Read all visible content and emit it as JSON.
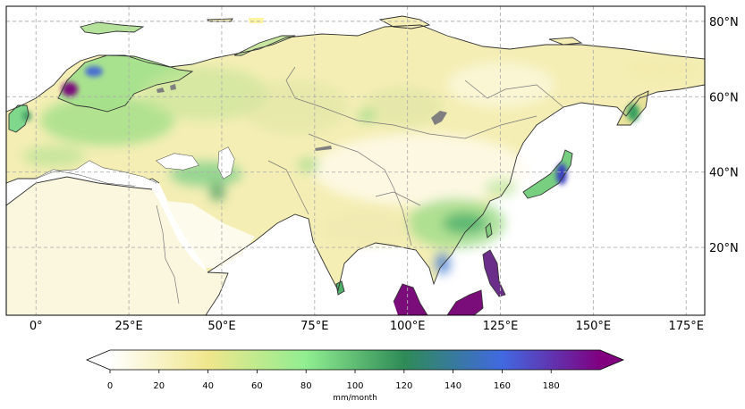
{
  "map": {
    "projection": "PlateCarree",
    "extent_lon": [
      -8,
      180
    ],
    "extent_lat": [
      2,
      84
    ],
    "lon_ticks": [
      {
        "value": 0,
        "label": "0°"
      },
      {
        "value": 25,
        "label": "25°E"
      },
      {
        "value": 50,
        "label": "50°E"
      },
      {
        "value": 75,
        "label": "75°E"
      },
      {
        "value": 100,
        "label": "100°E"
      },
      {
        "value": 125,
        "label": "125°E"
      },
      {
        "value": 150,
        "label": "150°E"
      },
      {
        "value": 175,
        "label": "175°E"
      }
    ],
    "lat_ticks": [
      {
        "value": 80,
        "label": "80°N"
      },
      {
        "value": 60,
        "label": "60°N"
      },
      {
        "value": 40,
        "label": "40°N"
      },
      {
        "value": 20,
        "label": "20°N"
      }
    ],
    "gridlines": true,
    "colors": {
      "land_outline": "#333333",
      "border": "#777777",
      "lakes": "#808080",
      "grid": "#b0b0b0"
    }
  },
  "colorbar": {
    "label": "mm/month",
    "ticks": [
      "0",
      "20",
      "40",
      "60",
      "80",
      "100",
      "120",
      "140",
      "160",
      "180"
    ],
    "range": [
      0,
      200
    ],
    "extend": "both",
    "colormap": [
      "#ffffff",
      "#f0e68c",
      "#90ee90",
      "#2e8b57",
      "#4169e1",
      "#800080"
    ]
  }
}
